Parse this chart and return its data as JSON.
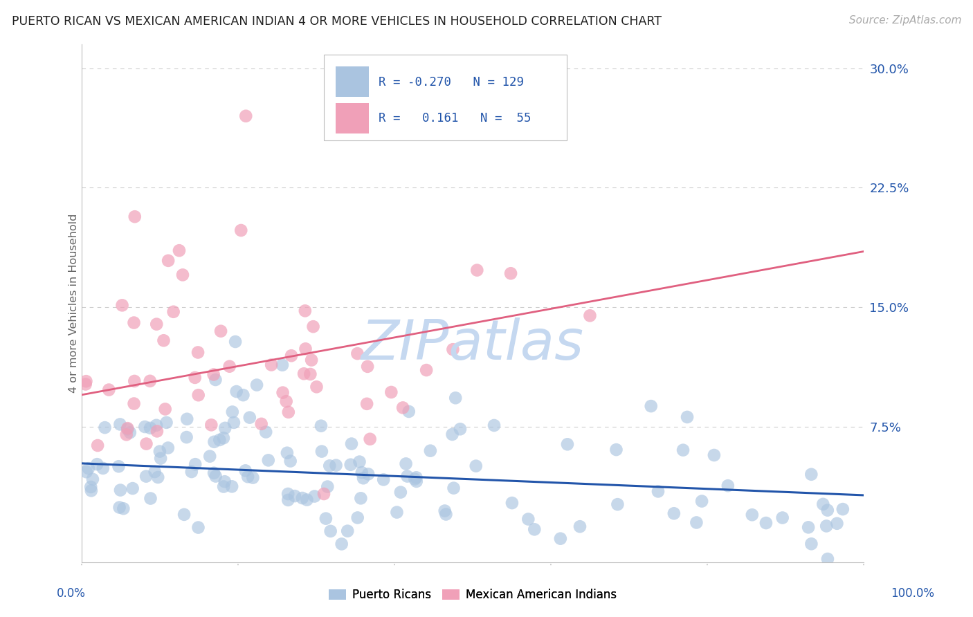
{
  "title": "PUERTO RICAN VS MEXICAN AMERICAN INDIAN 4 OR MORE VEHICLES IN HOUSEHOLD CORRELATION CHART",
  "source": "Source: ZipAtlas.com",
  "ylabel": "4 or more Vehicles in Household",
  "xmin": 0.0,
  "xmax": 1.0,
  "ymin": -0.01,
  "ymax": 0.315,
  "blue_r": -0.27,
  "blue_n": 129,
  "pink_r": 0.161,
  "pink_n": 55,
  "blue_color": "#aac4e0",
  "pink_color": "#f0a0b8",
  "blue_line_color": "#2255aa",
  "pink_line_color": "#e06080",
  "watermark_color": "#c5d8f0",
  "background_color": "#ffffff",
  "grid_color": "#cccccc",
  "yticks": [
    0.075,
    0.15,
    0.225,
    0.3
  ],
  "ytick_labels": [
    "7.5%",
    "15.0%",
    "22.5%",
    "30.0%"
  ],
  "blue_line_y0": 0.052,
  "blue_line_y1": 0.032,
  "pink_line_y0": 0.095,
  "pink_line_y1": 0.185
}
